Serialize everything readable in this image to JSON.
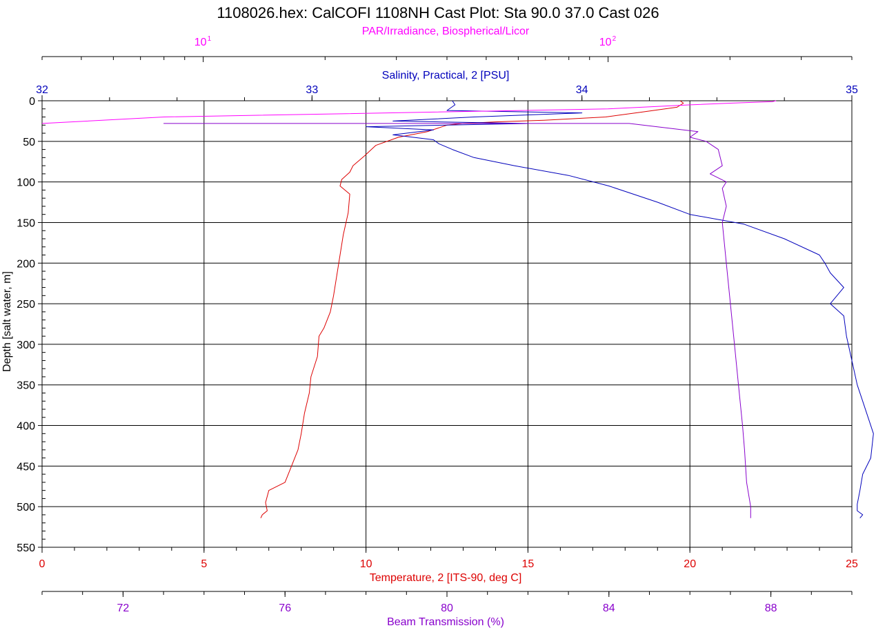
{
  "chart_data": {
    "type": "line",
    "title": "1108026.hex: CalCOFI 1108NH Cast Plot: Sta 90.0 37.0 Cast 026",
    "grid": true,
    "y_axis": {
      "label": "Depth [salt water, m]",
      "range": [
        0,
        550
      ],
      "inverted": true,
      "ticks": [
        0,
        50,
        100,
        150,
        200,
        250,
        300,
        350,
        400,
        450,
        500,
        550
      ]
    },
    "x_axes": [
      {
        "id": "par",
        "label": "PAR/Irradiance, Biospherical/Licor",
        "position": "top",
        "scale": "log",
        "range": [
          4,
          400
        ],
        "tick_labels": [
          {
            "value": 10,
            "base": "10",
            "exp": "1"
          },
          {
            "value": 100,
            "base": "10",
            "exp": "2"
          }
        ],
        "color": "#ff00ff"
      },
      {
        "id": "salinity",
        "label": "Salinity, Practical, 2 [PSU]",
        "position": "top",
        "range": [
          32,
          35
        ],
        "ticks": [
          32,
          33,
          34,
          35
        ],
        "color": "#0000bb"
      },
      {
        "id": "temperature",
        "label": "Temperature, 2 [ITS-90, deg C]",
        "position": "bottom",
        "range": [
          0,
          25
        ],
        "ticks": [
          0,
          5,
          10,
          15,
          20,
          25
        ],
        "color": "#dd0000"
      },
      {
        "id": "beam",
        "label": "Beam Transmission (%)",
        "position": "bottom",
        "range": [
          70,
          90
        ],
        "ticks": [
          72,
          76,
          80,
          84,
          88
        ],
        "color": "#8800cc"
      }
    ],
    "series": [
      {
        "axis": "temperature",
        "color": "#dd0000",
        "x": [
          19.7,
          19.8,
          19.6,
          18.5,
          17.4,
          15.5,
          14.0,
          13.0,
          12.5,
          12.2,
          11.9,
          11.0,
          10.3,
          9.95,
          9.6,
          9.5,
          9.25,
          9.2,
          9.5,
          9.45,
          9.3,
          9.2,
          9.1,
          9.0,
          8.9,
          8.7,
          8.55,
          8.5,
          8.3,
          8.25,
          8.1,
          8.0,
          7.9,
          7.7,
          7.5,
          7.0,
          6.9,
          6.95,
          6.8,
          6.75
        ],
        "y": [
          0,
          3,
          8,
          14,
          20,
          24,
          26,
          28,
          30,
          34,
          38,
          45,
          55,
          68,
          80,
          88,
          97,
          105,
          115,
          138,
          165,
          190,
          215,
          240,
          260,
          280,
          290,
          315,
          340,
          360,
          385,
          410,
          430,
          450,
          470,
          480,
          495,
          505,
          510,
          514
        ]
      },
      {
        "axis": "salinity",
        "color": "#0000bb",
        "x": [
          33.52,
          33.53,
          33.5,
          34.0,
          33.6,
          33.3,
          33.8,
          33.5,
          33.2,
          33.45,
          33.3,
          33.45,
          33.47,
          33.52,
          33.6,
          33.75,
          33.95,
          34.1,
          34.28,
          34.4,
          34.6,
          34.75,
          34.88,
          34.9,
          34.92,
          34.97,
          34.92,
          34.97,
          34.98,
          35.0,
          35.02,
          35.04,
          35.06,
          35.08,
          35.07,
          35.04,
          35.03,
          35.02,
          35.02,
          35.04,
          35.03
        ],
        "y": [
          0,
          5,
          12,
          15,
          20,
          25,
          28,
          30,
          32,
          36,
          42,
          48,
          53,
          60,
          70,
          80,
          92,
          105,
          125,
          140,
          152,
          170,
          190,
          200,
          212,
          230,
          250,
          265,
          290,
          320,
          350,
          370,
          390,
          410,
          440,
          460,
          480,
          497,
          505,
          510,
          514
        ]
      },
      {
        "axis": "beam",
        "color": "#8800cc",
        "x": [
          73.0,
          84.5,
          86.2,
          86.0,
          86.4,
          86.7,
          86.8,
          86.5,
          86.9,
          86.8,
          86.9,
          86.8,
          86.9,
          87.0,
          87.1,
          87.2,
          87.3,
          87.35,
          87.4,
          87.5,
          87.5
        ],
        "y": [
          28,
          28,
          38,
          45,
          50,
          60,
          80,
          90,
          100,
          108,
          130,
          150,
          200,
          250,
          300,
          350,
          400,
          430,
          470,
          500,
          514
        ]
      },
      {
        "axis": "par",
        "color": "#ff00ff",
        "x": [
          260,
          255,
          200,
          160,
          100,
          8,
          4
        ],
        "y": [
          0,
          1,
          3,
          5,
          10,
          20,
          28
        ]
      }
    ]
  }
}
